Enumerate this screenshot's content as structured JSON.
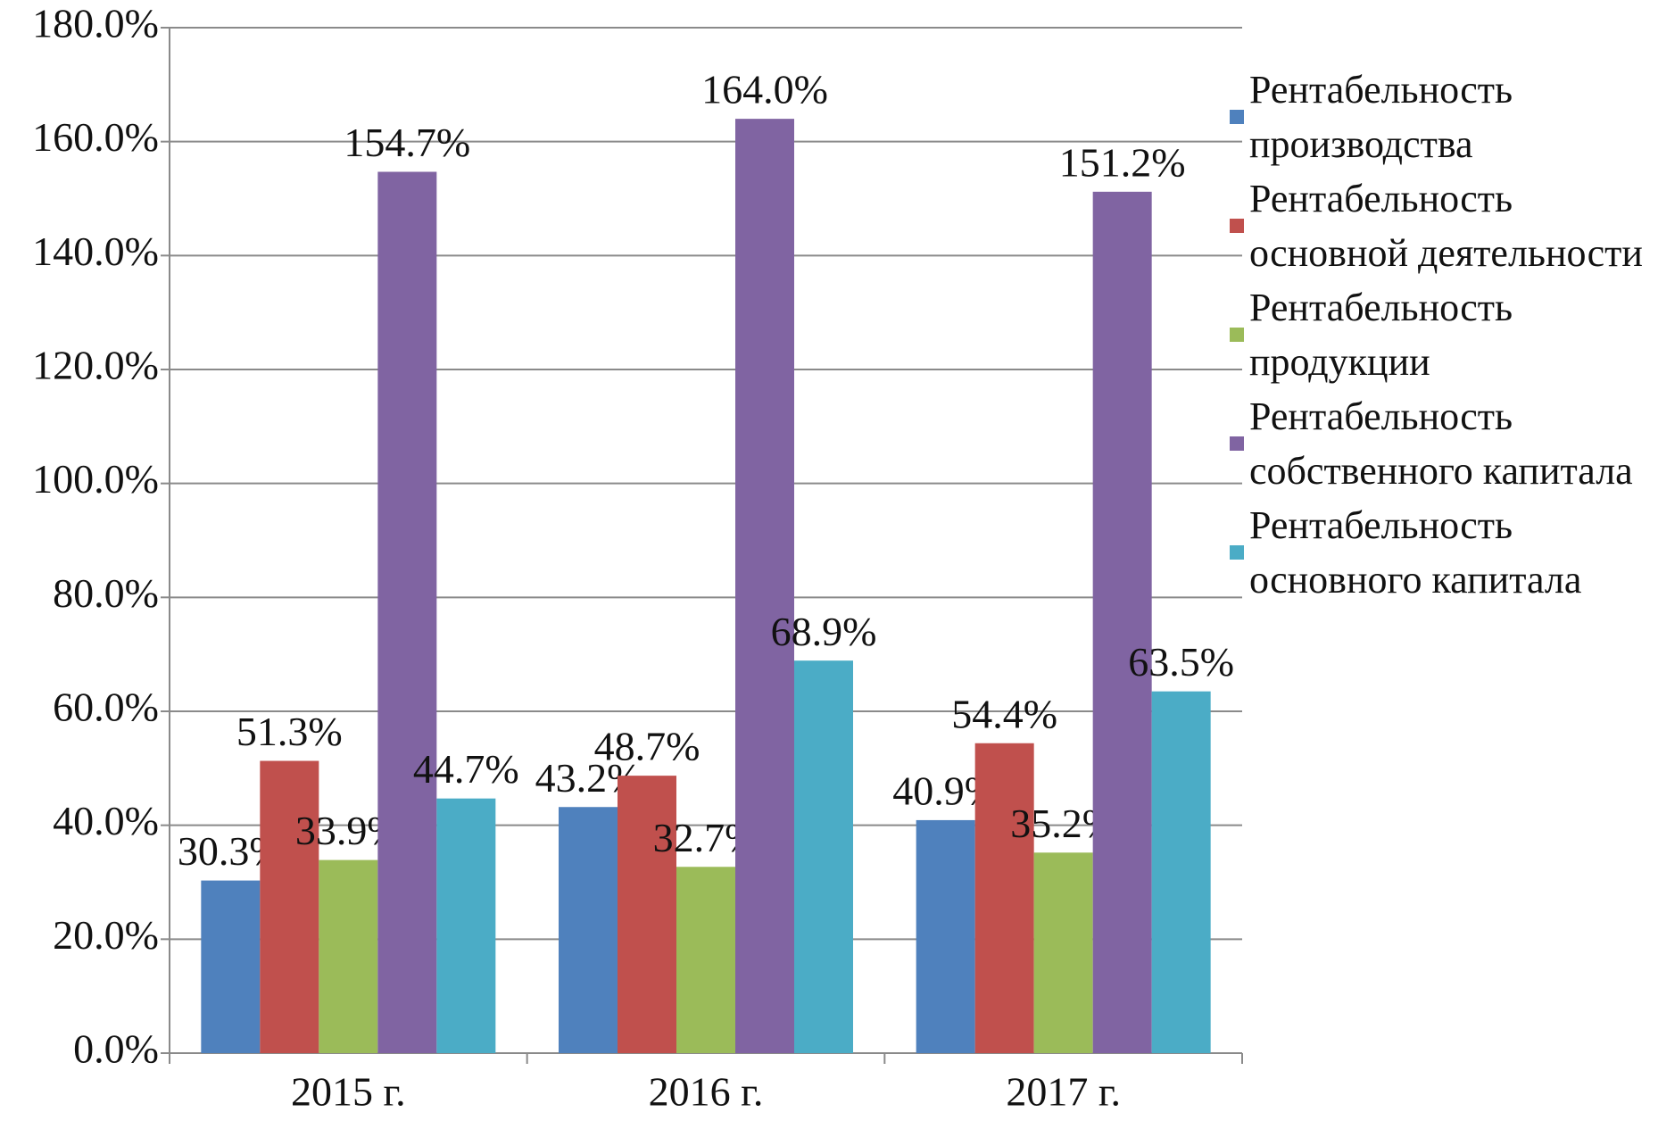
{
  "chart_data": {
    "type": "bar",
    "categories": [
      "2015 г.",
      "2016 г.",
      "2017 г."
    ],
    "series": [
      {
        "name": "Рентабельность производства",
        "color": "#4f81bd",
        "values": [
          30.3,
          43.2,
          40.9
        ],
        "value_labels": [
          "30.3%",
          "43.2%",
          "40.9%"
        ]
      },
      {
        "name": "Рентабельность основной деятельности",
        "color": "#c0504d",
        "values": [
          51.3,
          48.7,
          54.4
        ],
        "value_labels": [
          "51.3%",
          "48.7%",
          "54.4%"
        ]
      },
      {
        "name": "Рентабельность продукции",
        "color": "#9bbb59",
        "values": [
          33.9,
          32.7,
          35.2
        ],
        "value_labels": [
          "33.9%",
          "32.7%",
          "35.2%"
        ]
      },
      {
        "name": "Рентабельность собственного капитала",
        "color": "#8064a2",
        "values": [
          154.7,
          164.0,
          151.2
        ],
        "value_labels": [
          "154.7%",
          "164.0%",
          "151.2%"
        ]
      },
      {
        "name": "Рентабельность основного капитала",
        "color": "#4bacc6",
        "values": [
          44.7,
          68.9,
          63.5
        ],
        "value_labels": [
          "44.7%",
          "68.9%",
          "63.5%"
        ]
      }
    ],
    "ylim": [
      0,
      180
    ],
    "yticks": [
      {
        "value": 0,
        "label": "0.0%"
      },
      {
        "value": 20,
        "label": "20.0%"
      },
      {
        "value": 40,
        "label": "40.0%"
      },
      {
        "value": 60,
        "label": "60.0%"
      },
      {
        "value": 80,
        "label": "80.0%"
      },
      {
        "value": 100,
        "label": "100.0%"
      },
      {
        "value": 120,
        "label": "120.0%"
      },
      {
        "value": 140,
        "label": "140.0%"
      },
      {
        "value": 160,
        "label": "160.0%"
      },
      {
        "value": 180,
        "label": "180.0%"
      }
    ],
    "grid": true,
    "legend": "right"
  }
}
